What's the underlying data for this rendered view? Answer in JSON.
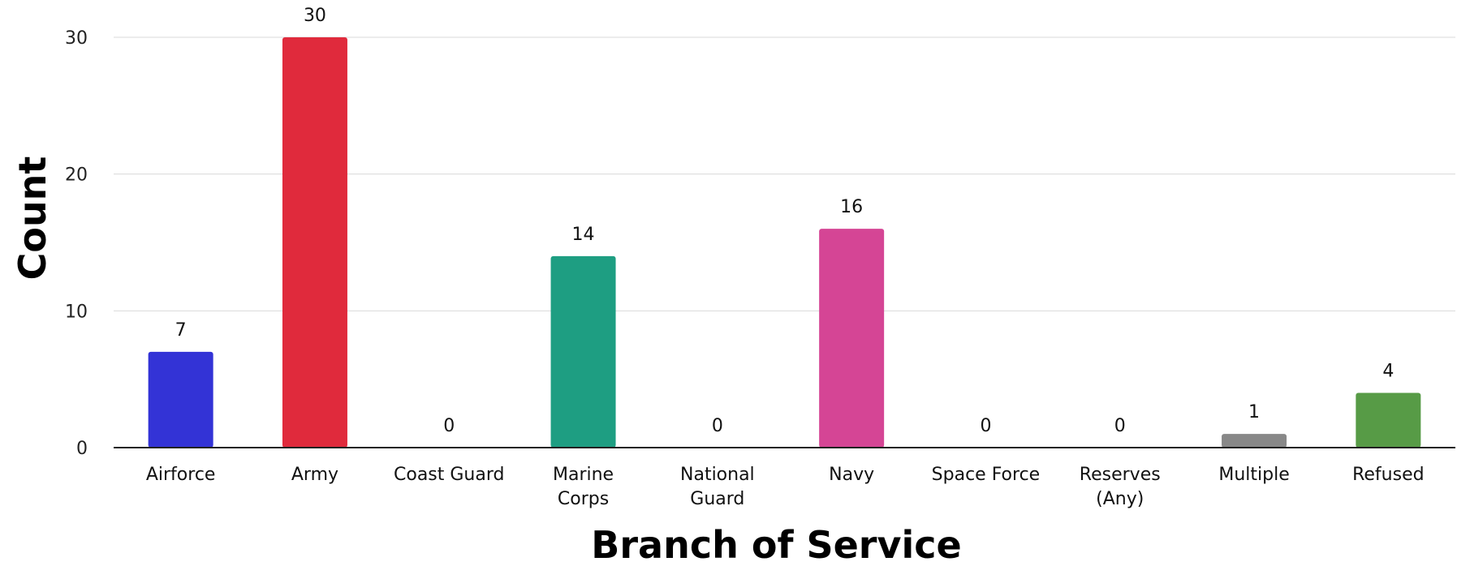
{
  "chart_data": {
    "type": "bar",
    "title": "",
    "xlabel": "Branch of Service",
    "ylabel": "Count",
    "ylim": [
      0,
      30
    ],
    "yticks": [
      0,
      10,
      20,
      30
    ],
    "grid": true,
    "legend": "none",
    "categories": [
      "Airforce",
      "Army",
      "Coast Guard",
      "Marine Corps",
      "National Guard",
      "Navy",
      "Space Force",
      "Reserves (Any)",
      "Multiple",
      "Refused"
    ],
    "values": [
      7,
      30,
      0,
      14,
      0,
      16,
      0,
      0,
      1,
      4
    ],
    "colors": [
      "#3333d6",
      "#e02a3c",
      "#2a9d8f",
      "#1e9e82",
      "#888888",
      "#d54595",
      "#888888",
      "#888888",
      "#888888",
      "#579b46"
    ]
  }
}
